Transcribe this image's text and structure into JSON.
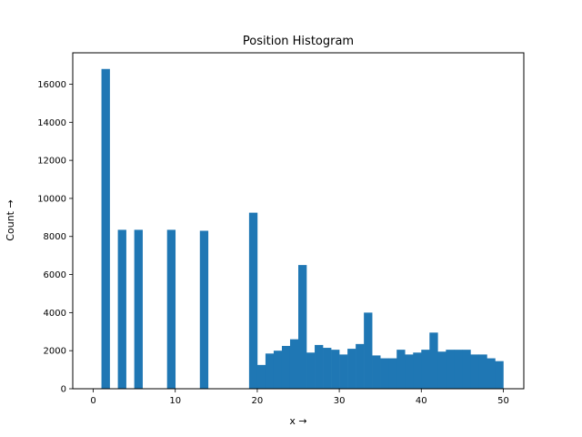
{
  "chart_data": {
    "type": "bar",
    "title": "Position Histogram",
    "xlabel": "x →",
    "ylabel": "Count →",
    "xlim": [
      -2.5,
      52.5
    ],
    "ylim": [
      0,
      17650
    ],
    "xticks": [
      0,
      10,
      20,
      30,
      40,
      50
    ],
    "yticks": [
      0,
      2000,
      4000,
      6000,
      8000,
      10000,
      12000,
      14000,
      16000
    ],
    "grid": false,
    "color": "#1f77b4",
    "bin_edges": [
      0.0,
      1.0,
      2.0,
      3.0,
      4.0,
      5.0,
      6.0,
      7.0,
      8.0,
      9.0,
      10.0,
      11.0,
      12.0,
      13.0,
      14.0,
      15.0,
      16.0,
      17.0,
      18.0,
      19.0,
      20.0,
      21.0,
      22.0,
      23.0,
      24.0,
      25.0,
      26.0,
      27.0,
      28.0,
      29.0,
      30.0,
      31.0,
      32.0,
      33.0,
      34.0,
      35.0,
      36.0,
      37.0,
      38.0,
      39.0,
      40.0,
      41.0,
      42.0,
      43.0,
      44.0,
      45.0,
      46.0,
      47.0,
      48.0,
      49.0,
      50.0
    ],
    "counts": [
      0,
      16800,
      0,
      8350,
      0,
      8350,
      0,
      0,
      0,
      8350,
      0,
      0,
      0,
      8300,
      0,
      0,
      0,
      0,
      0,
      9250,
      1250,
      1850,
      2000,
      2250,
      2600,
      6500,
      1900,
      2300,
      2150,
      2050,
      1800,
      2100,
      2350,
      4000,
      1750,
      1600,
      1600,
      2050,
      1800,
      1900,
      2050,
      2950,
      1950,
      2050,
      2050,
      2050,
      1800,
      1800,
      1600,
      1450
    ]
  }
}
